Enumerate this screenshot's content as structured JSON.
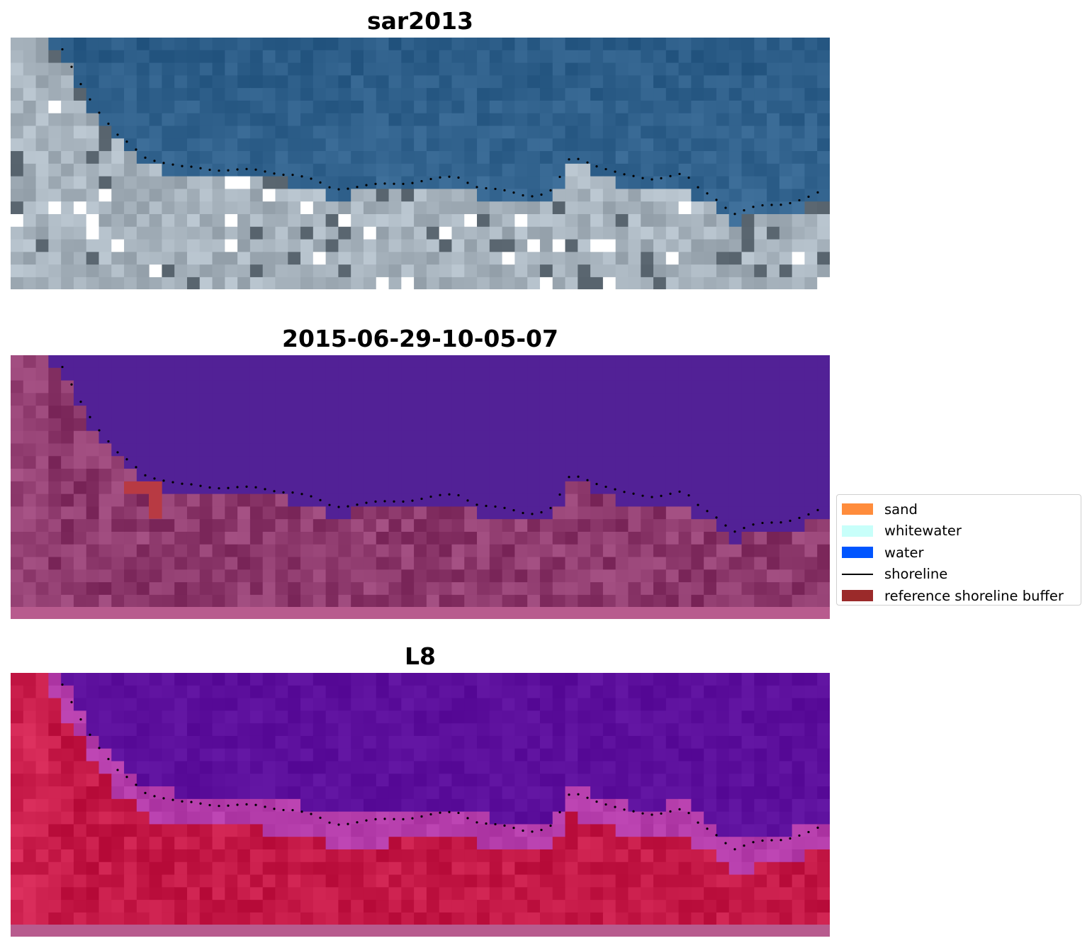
{
  "panels": [
    {
      "title": "sar2013",
      "style": "rgb"
    },
    {
      "title": "2015-06-29-10-05-07",
      "style": "classified"
    },
    {
      "title": "L8",
      "style": "ndwi"
    }
  ],
  "legend": {
    "items": [
      {
        "label": "sand",
        "type": "patch",
        "color": "#ff8c3c"
      },
      {
        "label": "whitewater",
        "type": "patch",
        "color": "#c8fffa"
      },
      {
        "label": "water",
        "type": "patch",
        "color": "#0055ff"
      },
      {
        "label": "shoreline",
        "type": "line",
        "color": "#000000"
      },
      {
        "label": "reference shoreline buffer",
        "type": "patch",
        "color": "#9b2a2a"
      }
    ]
  },
  "colors": {
    "sar_water": "#2a5b86",
    "sar_land": "#a7b3bd",
    "class_water": "#522196",
    "class_land": "#8e3a6d",
    "class_buffer": "#b83a43",
    "ndwi_water": "#5c0f9c",
    "ndwi_land": "#c41846",
    "bottom_strip": "#b85b8e",
    "shoreline": "#000000"
  }
}
